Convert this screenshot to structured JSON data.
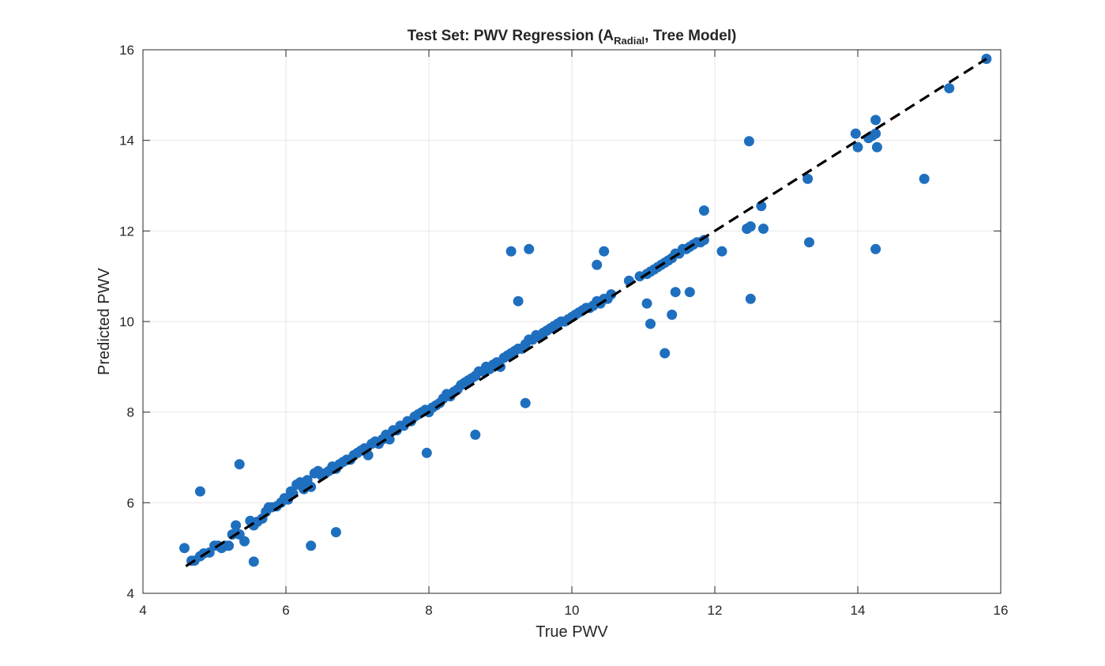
{
  "chart_data": {
    "type": "scatter",
    "title": {
      "pre": "Test  Set:  PWV  Regression  (A",
      "sub": "Radial",
      "post": ",  Tree  Model)"
    },
    "xlabel": "True PWV",
    "ylabel": "Predicted PWV",
    "xlim": [
      4,
      16
    ],
    "ylim": [
      4,
      16
    ],
    "xticks": [
      "4",
      "6",
      "8",
      "10",
      "12",
      "14",
      "16"
    ],
    "yticks": [
      "4",
      "6",
      "8",
      "10",
      "12",
      "14",
      "16"
    ],
    "grid": true,
    "colors": {
      "points": "#1f6fbf",
      "reference_line": "#000000",
      "grid": "#e6e6e6"
    },
    "reference_line": {
      "style": "dashed",
      "x": [
        4.6,
        15.8
      ],
      "y": [
        4.6,
        15.8
      ]
    },
    "series": [
      {
        "x": [
          4.58,
          4.68,
          4.72,
          4.8,
          4.85,
          4.93,
          5.0,
          5.05,
          5.1,
          5.15,
          5.2,
          5.25,
          5.3,
          5.35,
          5.42,
          5.5,
          5.55,
          5.6,
          5.67,
          5.72,
          5.76,
          5.8,
          5.87,
          5.93,
          5.98,
          6.03,
          6.07,
          6.1,
          6.15,
          6.2,
          6.25,
          6.3,
          6.35,
          6.4,
          6.45,
          6.5,
          6.55,
          6.6,
          6.65,
          6.7,
          6.75,
          6.8,
          6.85,
          6.9,
          6.95,
          7.0,
          7.05,
          7.1,
          7.15,
          7.2,
          7.25,
          7.3,
          7.35,
          7.4,
          7.45,
          7.5,
          7.55,
          7.6,
          7.65,
          7.7,
          7.75,
          7.8,
          7.85,
          7.9,
          7.95,
          8.0,
          8.05,
          8.1,
          8.15,
          8.2,
          8.25,
          8.3,
          8.35,
          8.4,
          8.45,
          8.5,
          8.55,
          8.6,
          8.65,
          8.7,
          8.75,
          8.8,
          8.85,
          8.9,
          8.95,
          9.0,
          9.05,
          9.1,
          9.15,
          9.2,
          9.25,
          9.3,
          9.35,
          9.4,
          9.45,
          9.5,
          9.55,
          9.6,
          9.65,
          9.7,
          9.75,
          9.8,
          9.85,
          9.9,
          9.95,
          10.0,
          10.05,
          10.1,
          10.15,
          10.2,
          10.25,
          10.3,
          10.35,
          10.4,
          10.45,
          10.5,
          10.55,
          10.8,
          10.95,
          11.05,
          11.1,
          11.15,
          11.2,
          11.25,
          11.3,
          11.35,
          11.4,
          11.45,
          11.5,
          11.55,
          11.6,
          11.65,
          11.7,
          11.75,
          11.8,
          11.85,
          12.1,
          12.45,
          12.5,
          12.65,
          12.68,
          13.3,
          13.32,
          13.97,
          14.0,
          14.15,
          14.2,
          14.25,
          14.27,
          14.93,
          15.28,
          15.8,
          4.8,
          5.35,
          5.55,
          6.35,
          6.7,
          7.97,
          8.65,
          9.35,
          9.15,
          9.25,
          9.4,
          10.45,
          10.35,
          11.05,
          11.1,
          11.3,
          11.4,
          11.45,
          12.48,
          12.5,
          14.25,
          14.25,
          12.45,
          11.65,
          11.85
        ],
        "y": [
          5.0,
          4.72,
          4.72,
          4.82,
          4.88,
          4.9,
          5.05,
          5.05,
          5.0,
          5.05,
          5.05,
          5.3,
          5.5,
          5.3,
          5.15,
          5.6,
          5.5,
          5.58,
          5.65,
          5.8,
          5.9,
          5.9,
          5.92,
          6.0,
          6.1,
          6.07,
          6.25,
          6.2,
          6.4,
          6.45,
          6.3,
          6.5,
          6.35,
          6.65,
          6.7,
          6.6,
          6.65,
          6.7,
          6.8,
          6.75,
          6.85,
          6.9,
          6.95,
          6.95,
          7.05,
          7.1,
          7.15,
          7.2,
          7.05,
          7.3,
          7.35,
          7.3,
          7.4,
          7.5,
          7.4,
          7.6,
          7.6,
          7.7,
          7.7,
          7.8,
          7.8,
          7.9,
          7.95,
          8.0,
          8.05,
          8.0,
          8.1,
          8.15,
          8.2,
          8.3,
          8.4,
          8.35,
          8.45,
          8.5,
          8.6,
          8.65,
          8.7,
          8.75,
          8.8,
          8.9,
          8.9,
          9.0,
          8.95,
          9.05,
          9.1,
          9.0,
          9.2,
          9.25,
          9.3,
          9.35,
          9.4,
          9.4,
          9.5,
          9.6,
          9.6,
          9.7,
          9.65,
          9.75,
          9.8,
          9.85,
          9.9,
          9.95,
          10.0,
          10.0,
          10.05,
          10.1,
          10.15,
          10.2,
          10.25,
          10.3,
          10.3,
          10.35,
          10.45,
          10.4,
          10.5,
          10.5,
          10.6,
          10.9,
          11.0,
          11.05,
          11.1,
          11.15,
          11.2,
          11.25,
          11.3,
          11.35,
          11.4,
          11.5,
          11.5,
          11.6,
          11.6,
          11.65,
          11.7,
          11.75,
          11.75,
          11.8,
          11.55,
          12.05,
          12.1,
          12.55,
          12.05,
          13.15,
          11.75,
          14.15,
          13.85,
          14.05,
          14.1,
          14.45,
          13.85,
          13.15,
          15.15,
          15.8,
          6.25,
          6.85,
          4.7,
          5.05,
          5.35,
          7.1,
          7.5,
          8.2,
          11.55,
          10.45,
          11.6,
          11.55,
          11.25,
          10.4,
          9.95,
          9.3,
          10.15,
          10.65,
          13.98,
          10.5,
          11.6,
          14.15,
          12.05,
          10.65,
          12.45
        ]
      }
    ]
  }
}
